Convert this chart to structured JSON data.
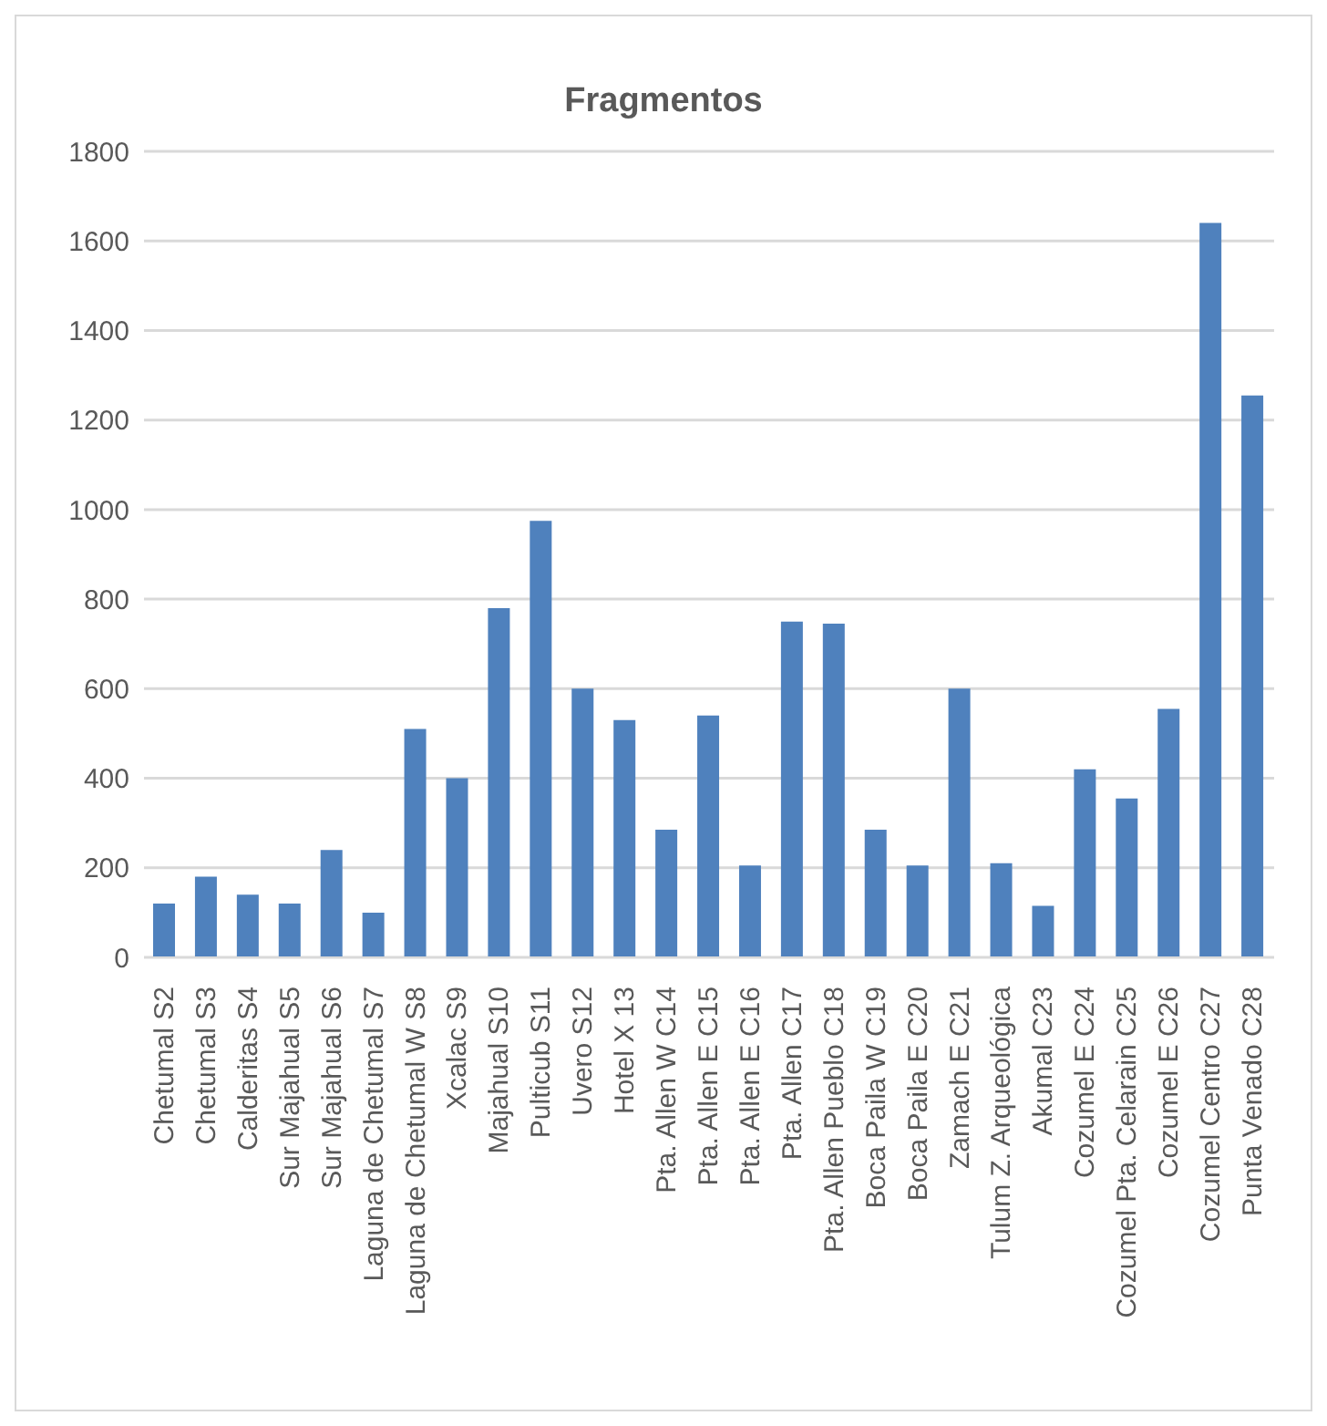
{
  "chart_data": {
    "type": "bar",
    "title": "Fragmentos",
    "categories": [
      "Chetumal S2",
      "Chetumal S3",
      "Calderitas S4",
      "Sur Majahual S5",
      "Sur Majahual S6",
      "Laguna de Chetumal S7",
      "Laguna de Chetumal W S8",
      "Xcalac S9",
      "Majahual S10",
      "Pulticub S11",
      "Uvero S12",
      "Hotel X 13",
      "Pta. Allen W C14",
      "Pta. Allen E  C15",
      "Pta. Allen E C16",
      "Pta. Allen C17",
      "Pta. Allen Pueblo C18",
      "Boca Paila W C19",
      "Boca Paila E C20",
      "Zamach E C21",
      "Tulum Z. Arqueológica",
      "Akumal C23",
      "Cozumel E C24",
      "Cozumel Pta. Celarain C25",
      "Cozumel E C26",
      "Cozumel Centro C27",
      "Punta Venado C28"
    ],
    "values": [
      120,
      180,
      140,
      120,
      240,
      100,
      510,
      400,
      780,
      975,
      600,
      530,
      285,
      540,
      205,
      750,
      745,
      285,
      205,
      600,
      210,
      115,
      420,
      355,
      555,
      1640,
      1255
    ],
    "color": "#4f81bd",
    "ylim": [
      0,
      1800
    ],
    "yticks": [
      0,
      200,
      400,
      600,
      800,
      1000,
      1200,
      1400,
      1600,
      1800
    ],
    "grid": "y"
  }
}
